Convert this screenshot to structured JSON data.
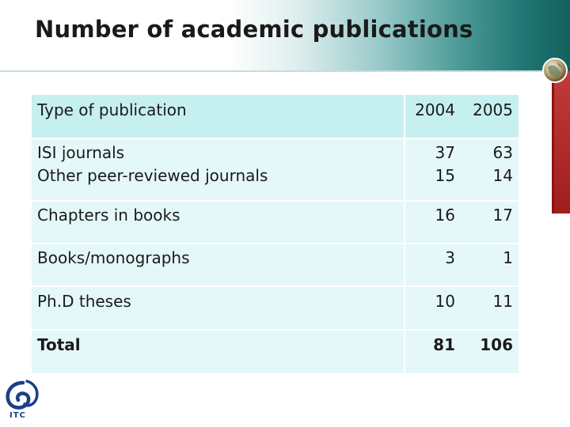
{
  "slide": {
    "title": "Number of academic publications"
  },
  "table": {
    "header": {
      "type_label": "Type of publication",
      "years": [
        "2004",
        "2005"
      ]
    },
    "rows": [
      {
        "label_lines": [
          "ISI journals",
          "Other peer-reviewed journals"
        ],
        "v2004": [
          "37",
          "15"
        ],
        "v2005": [
          "63",
          "14"
        ]
      },
      {
        "label": "Chapters in books",
        "v2004": "16",
        "v2005": "17"
      },
      {
        "label": "Books/monographs",
        "v2004": "3",
        "v2005": "1"
      },
      {
        "label": "Ph.D theses",
        "v2004": "10",
        "v2005": "11"
      },
      {
        "label": "Total",
        "v2004": "81",
        "v2005": "106"
      }
    ]
  },
  "branding": {
    "logo_text": "ITC"
  },
  "colors": {
    "header_fill": "#c6eff0",
    "row_fill": "#e5f8f9",
    "title_gradient_end": "#13605c",
    "accent_red": "#a01d1d",
    "logo_blue": "#1a3f8a"
  }
}
